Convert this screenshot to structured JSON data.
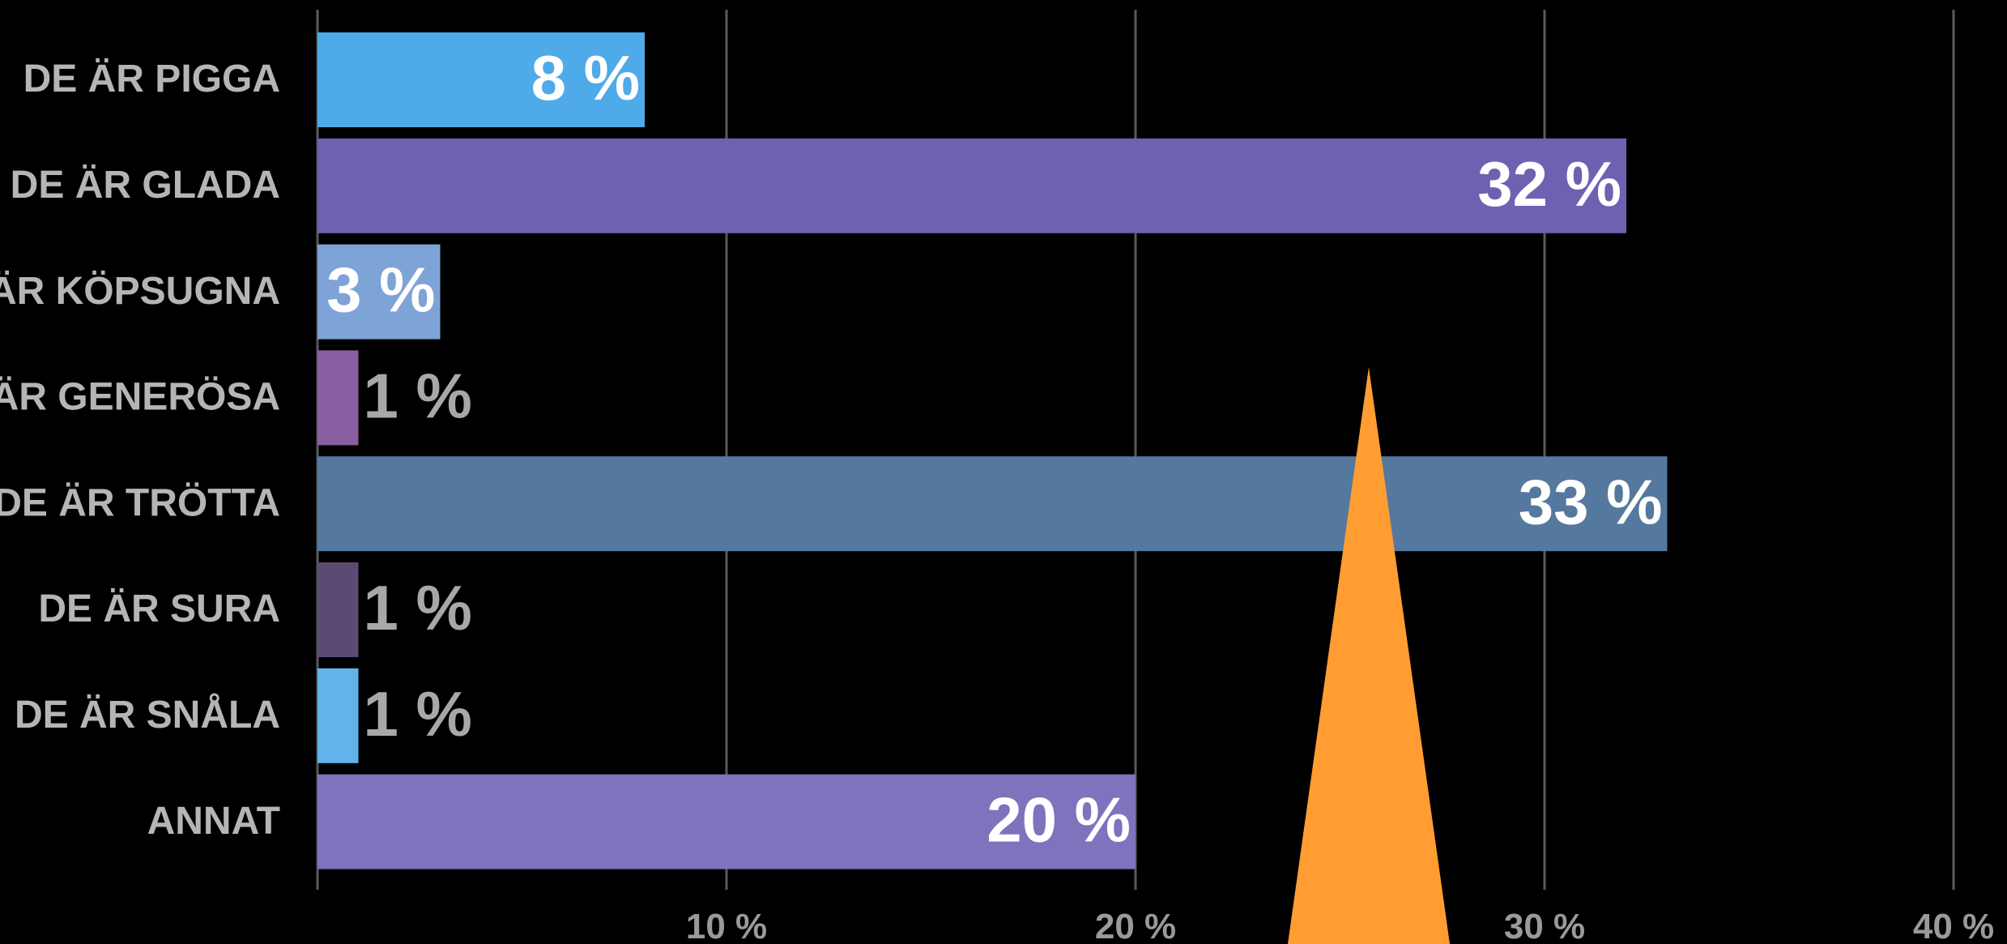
{
  "chart_data": {
    "type": "bar",
    "orientation": "horizontal",
    "categories": [
      "DE ÄR PIGGA",
      "DE ÄR GLADA",
      "DE ÄR KÖPSUGNA",
      "DE ÄR GENERÖSA",
      "DE ÄR TRÖTTA",
      "DE ÄR SURA",
      "DE ÄR SNÅLA",
      "ANNAT"
    ],
    "values": [
      8,
      32,
      3,
      1,
      33,
      1,
      1,
      20
    ],
    "value_labels": [
      "8 %",
      "32 %",
      "3 %",
      "1 %",
      "33 %",
      "1 %",
      "1 %",
      "20 %"
    ],
    "bar_colors": [
      "#4eaae8",
      "#6d62b1",
      "#7ea3d6",
      "#8a5ea3",
      "#55789e",
      "#5b4b73",
      "#60b4ea",
      "#7e73bd"
    ],
    "xlim": [
      0,
      40
    ],
    "x_ticks": [
      10,
      20,
      30,
      40
    ],
    "x_tick_labels": [
      "10 %",
      "20 %",
      "30 %",
      "40 %"
    ],
    "grid": true,
    "title": "",
    "xlabel": "",
    "ylabel": ""
  },
  "colors": {
    "background": "#000000",
    "gridline": "#5a5a5a",
    "category_label": "#b5b5b5",
    "pointer_triangle": "#ff9d33"
  },
  "decorations": {
    "pointer": "orange-triangle"
  }
}
